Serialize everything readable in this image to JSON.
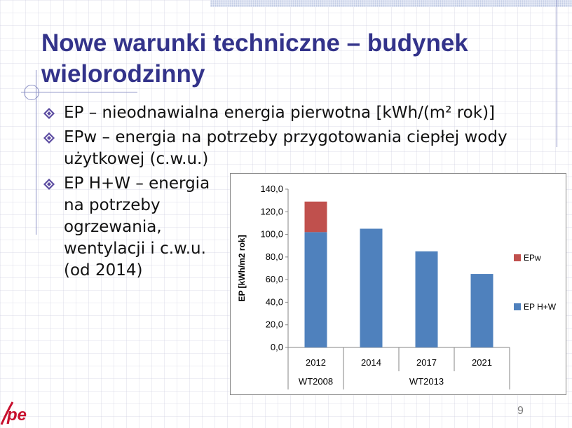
{
  "slide": {
    "title": "Nowe warunki techniczne – budynek wielorodzinny",
    "page_number": "9"
  },
  "bullets": [
    {
      "text": "EP – nieodnawialna energia pierwotna [kWh/(m² rok)]"
    },
    {
      "text": "EPw – energia na potrzeby przygotowania ciepłej wody użytkowej (c.w.u.)"
    },
    {
      "text": "EP H+W – energia na potrzeby ogrzewania, wentylacji i c.w.u. (od 2014)"
    }
  ],
  "logo": {
    "text": "pe",
    "color": "#c8102e"
  },
  "colors": {
    "title": "#33338a",
    "bullet_marker": "#5a4aa0",
    "deco": "#8a8fc4"
  },
  "chart_data": {
    "type": "bar",
    "stacked": true,
    "categories": [
      "2012",
      "2014",
      "2017",
      "2021"
    ],
    "groups": [
      {
        "label": "WT2008",
        "categories": [
          "2012"
        ]
      },
      {
        "label": "WT2013",
        "categories": [
          "2014",
          "2017",
          "2021"
        ]
      }
    ],
    "series": [
      {
        "name": "EP H+W",
        "values": [
          102,
          105,
          85,
          65
        ],
        "color": "#4f81bd"
      },
      {
        "name": "EPw",
        "values": [
          27,
          0,
          0,
          0
        ],
        "color": "#c0504d"
      }
    ],
    "ylabel": "EP [kWh/m2 rok]",
    "ylim": [
      0,
      140
    ],
    "yticks": [
      "0,0",
      "20,0",
      "40,0",
      "60,0",
      "80,0",
      "100,0",
      "120,0",
      "140,0"
    ],
    "legend_position": "right",
    "grid": false
  }
}
